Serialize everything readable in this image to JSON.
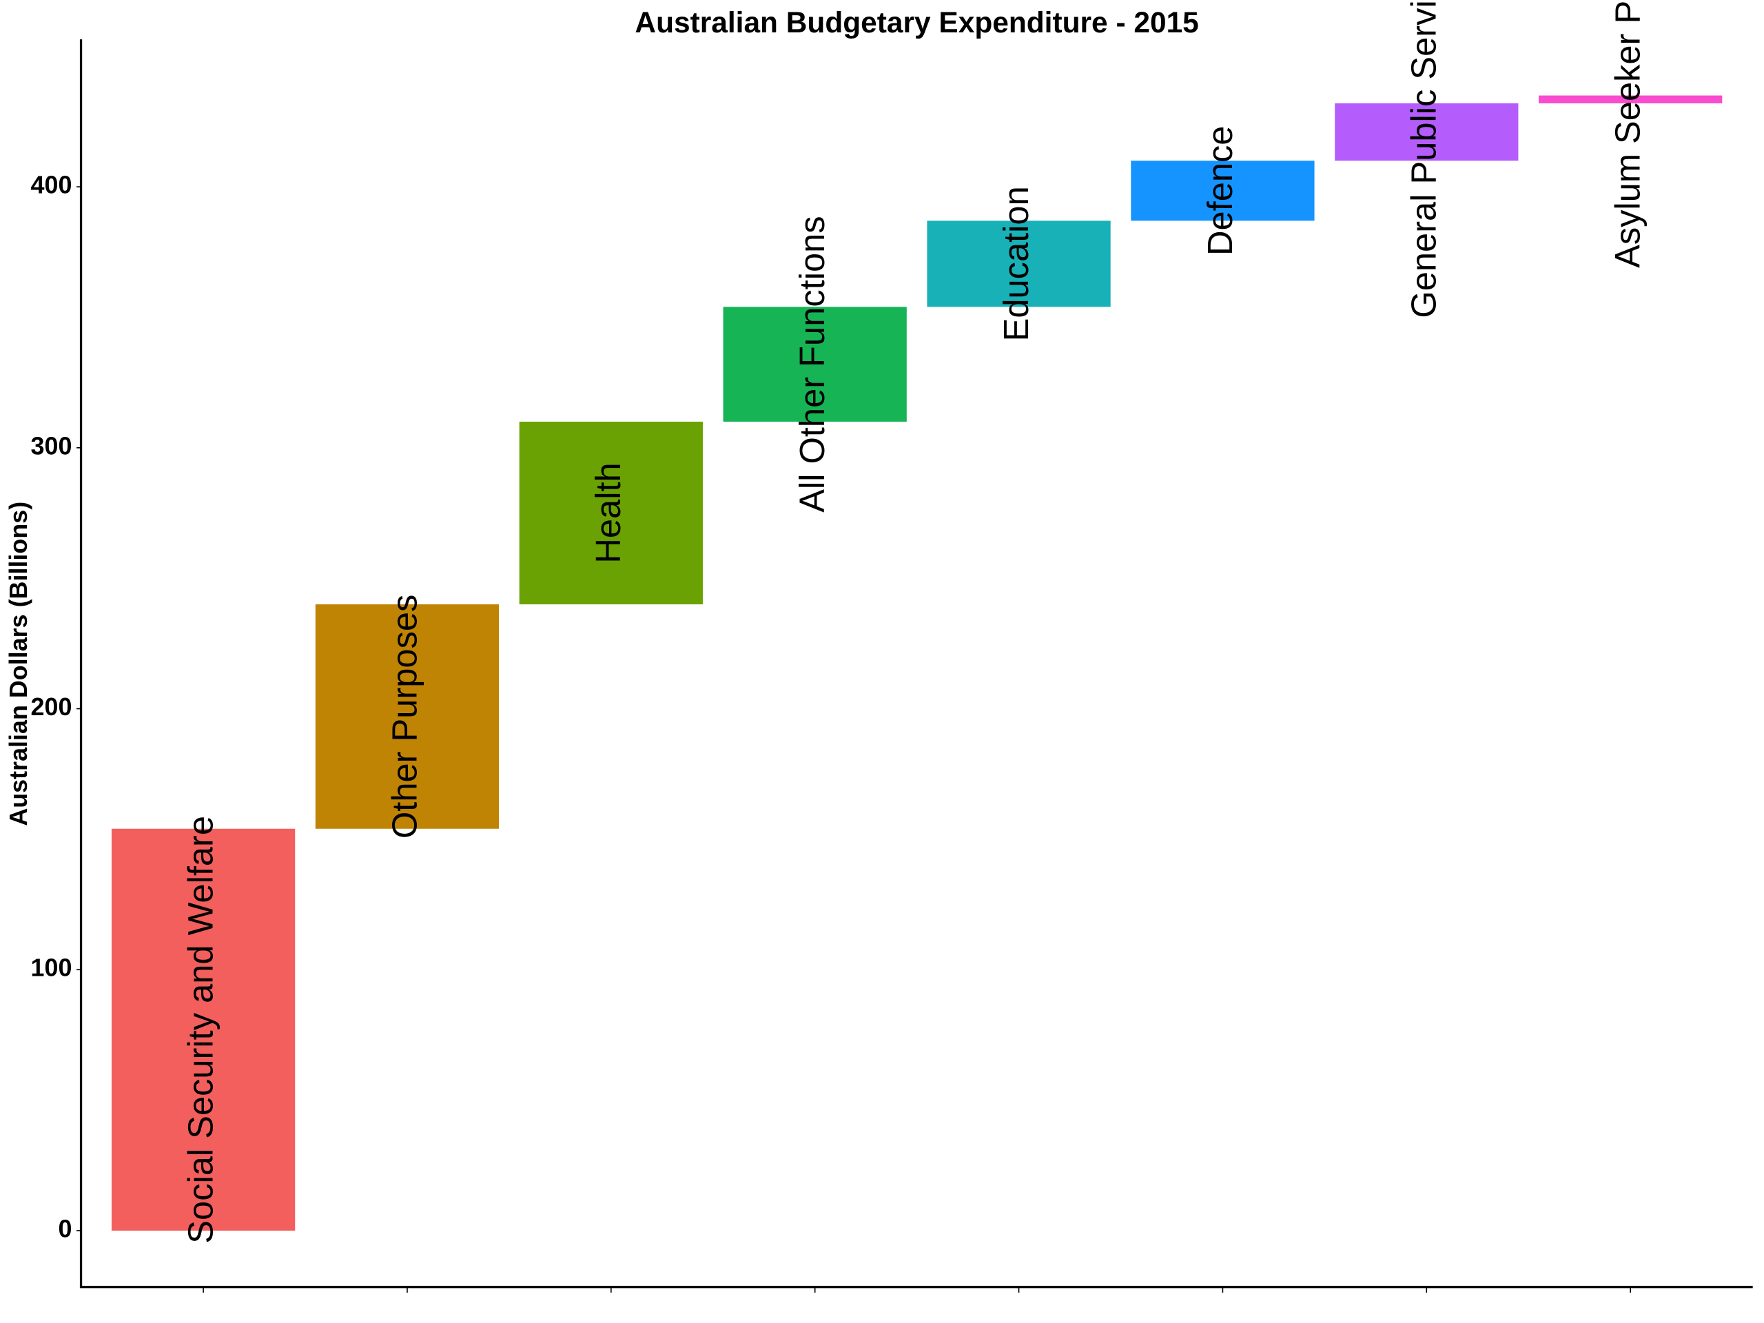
{
  "chart_data": {
    "type": "waterfall",
    "title": "Australian Budgetary Expenditure - 2015",
    "y_label": "Australian Dollars (Billions)",
    "categories": [
      "Social Security and Welfare",
      "Other Purposes",
      "Health",
      "All Other Functions",
      "Education",
      "Defence",
      "General Public Services",
      "Asylum Seeker Policy"
    ],
    "values": [
      154,
      86,
      70,
      44,
      33,
      23,
      22,
      3
    ],
    "colors": [
      "#F25F5C",
      "#C08405",
      "#6AA203",
      "#16B455",
      "#18B1B8",
      "#1594FF",
      "#B55DFC",
      "#F94BCD"
    ],
    "ylim": [
      -21.6,
      456.5
    ],
    "yticks": [
      0,
      100,
      200,
      300,
      400
    ],
    "grid": false
  }
}
